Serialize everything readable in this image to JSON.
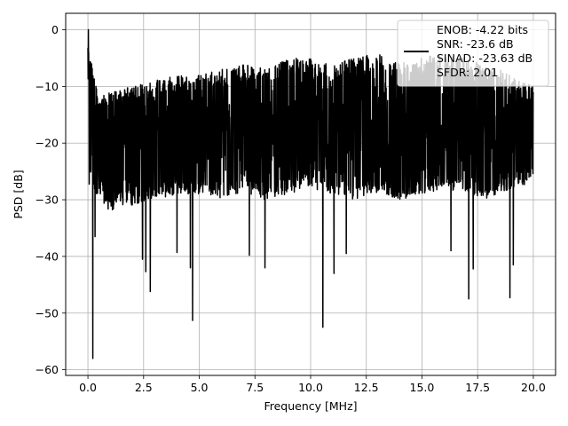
{
  "chart_data": {
    "type": "line",
    "xlabel": "Frequency [MHz]",
    "ylabel": "PSD [dB]",
    "xlim": [
      -0.999,
      20.999
    ],
    "ylim": [
      -61,
      2.9
    ],
    "xticks": [
      0.0,
      2.5,
      5.0,
      7.5,
      10.0,
      12.5,
      15.0,
      17.5,
      20.0
    ],
    "xtick_labels": [
      "0.0",
      "2.5",
      "5.0",
      "7.5",
      "10.0",
      "12.5",
      "15.0",
      "17.5",
      "20.0"
    ],
    "yticks": [
      0,
      -10,
      -20,
      -30,
      -40,
      -50,
      -60
    ],
    "ytick_labels": [
      "0",
      "−10",
      "−20",
      "−30",
      "−40",
      "−50",
      "−60"
    ],
    "grid": true,
    "legend_position": "upper right",
    "legend_lines": [
      "ENOB: -4.22 bits",
      "SNR: -23.6 dB",
      "SINAD: -23.63 dB",
      "SFDR: 2.01"
    ],
    "series": [
      {
        "color": "#000000",
        "envelope_x": [
          0.0,
          0.5,
          1.0,
          2.0,
          3.0,
          4.0,
          5.0,
          6.0,
          7.0,
          8.0,
          9.0,
          10.0,
          11.0,
          12.0,
          13.0,
          14.0,
          15.0,
          16.0,
          17.0,
          18.0,
          19.0,
          20.0
        ],
        "envelope_upper": [
          -3,
          -12,
          -11,
          -10,
          -9,
          -8,
          -8,
          -7,
          -6,
          -7,
          -5,
          -5,
          -6,
          -5,
          -4,
          -6,
          -5,
          -4,
          -5,
          -6,
          -8,
          -10
        ],
        "envelope_lower": [
          -27,
          -30,
          -32,
          -31,
          -30,
          -29,
          -29,
          -30,
          -29,
          -30,
          -29,
          -28,
          -29,
          -30,
          -29,
          -30,
          -29,
          -28,
          -29,
          -30,
          -28,
          -27
        ],
        "peaks": [
          {
            "x": 0.02,
            "y": 0.0
          },
          {
            "x": 0.22,
            "y": -58.0
          },
          {
            "x": 0.32,
            "y": -36.5
          },
          {
            "x": 2.45,
            "y": -40.5
          },
          {
            "x": 2.6,
            "y": -42.7
          },
          {
            "x": 2.8,
            "y": -46.2
          },
          {
            "x": 4.0,
            "y": -39.3
          },
          {
            "x": 4.6,
            "y": -42.0
          },
          {
            "x": 4.7,
            "y": -51.3
          },
          {
            "x": 7.25,
            "y": -39.8
          },
          {
            "x": 7.95,
            "y": -42.0
          },
          {
            "x": 10.55,
            "y": -52.5
          },
          {
            "x": 11.05,
            "y": -43.0
          },
          {
            "x": 11.6,
            "y": -39.5
          },
          {
            "x": 16.3,
            "y": -39.0
          },
          {
            "x": 17.1,
            "y": -47.5
          },
          {
            "x": 17.3,
            "y": -42.2
          },
          {
            "x": 18.95,
            "y": -47.3
          },
          {
            "x": 19.1,
            "y": -41.5
          }
        ]
      }
    ]
  }
}
